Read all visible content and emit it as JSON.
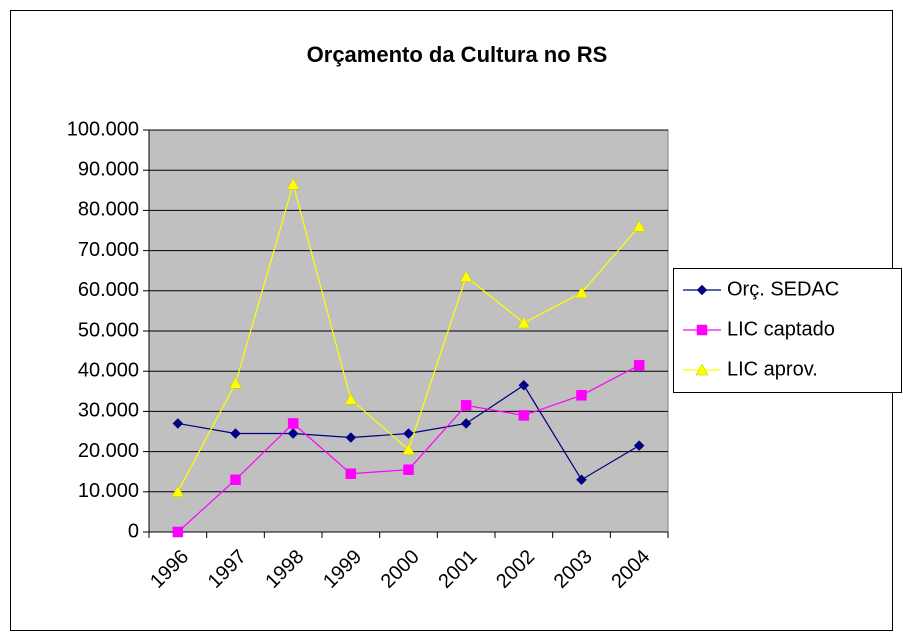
{
  "chart_data": {
    "type": "line",
    "title": "Orçamento da Cultura no RS",
    "categories": [
      "1996",
      "1997",
      "1998",
      "1999",
      "2000",
      "2001",
      "2002",
      "2003",
      "2004"
    ],
    "series": [
      {
        "name": "Orç. SEDAC",
        "color": "#000080",
        "marker": "diamond",
        "values": [
          27000,
          24500,
          24500,
          23500,
          24500,
          27000,
          36500,
          13000,
          21500
        ]
      },
      {
        "name": "LIC captado",
        "color": "#ff00ff",
        "marker": "square",
        "values": [
          0,
          13000,
          27000,
          14500,
          15500,
          31500,
          29000,
          34000,
          41500
        ]
      },
      {
        "name": "LIC aprov.",
        "color": "#ffff00",
        "marker": "triangle",
        "values": [
          10000,
          37000,
          86500,
          33000,
          20500,
          63500,
          52000,
          59500,
          76000
        ]
      }
    ],
    "ylim": [
      0,
      100000
    ],
    "yticks": [
      0,
      {
        "value": 10000,
        "label": "10.000"
      },
      {
        "value": 20000,
        "label": "20.000"
      },
      {
        "value": 30000,
        "label": "30.000"
      },
      {
        "value": 40000,
        "label": "40.000"
      },
      {
        "value": 50000,
        "label": "50.000"
      },
      {
        "value": 60000,
        "label": "60.000"
      },
      {
        "value": 70000,
        "label": "70.000"
      },
      {
        "value": 80000,
        "label": "80.000"
      },
      {
        "value": 90000,
        "label": "90.000"
      },
      {
        "value": 100000,
        "label": "100.000"
      }
    ],
    "grid": true,
    "legend": "right"
  }
}
